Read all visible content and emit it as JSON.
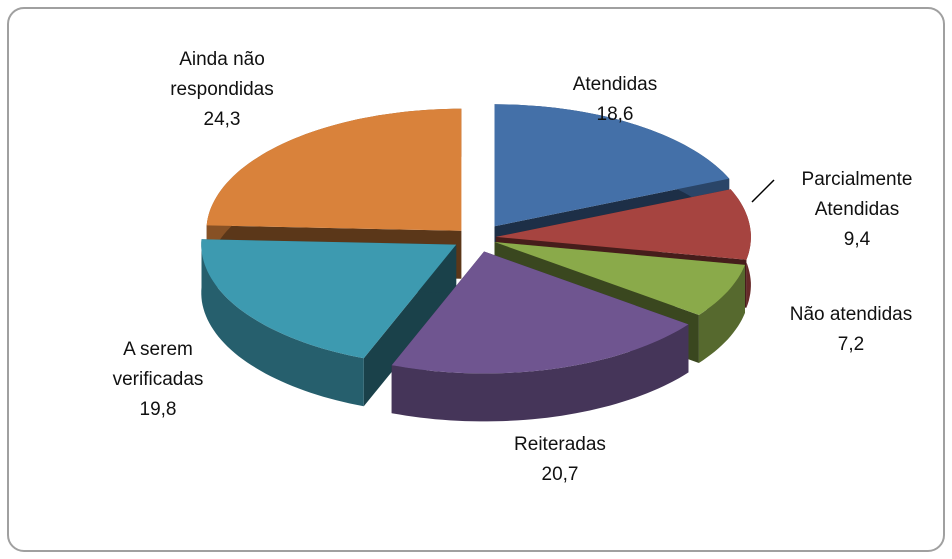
{
  "chart_data": {
    "type": "pie3d",
    "categories": [
      "Atendidas",
      "Parcialmente Atendidas",
      "Não atendidas",
      "Reiteradas",
      "A serem verificadas",
      "Ainda não respondidas"
    ],
    "values": [
      18.6,
      9.4,
      7.2,
      20.7,
      19.8,
      24.3
    ],
    "value_labels": [
      "18,6",
      "9,4",
      "7,2",
      "20,7",
      "19,8",
      "24,3"
    ],
    "colors": [
      "#4470a8",
      "#a64440",
      "#8aaa4a",
      "#6f5590",
      "#3d9ab0",
      "#d9823b"
    ]
  }
}
